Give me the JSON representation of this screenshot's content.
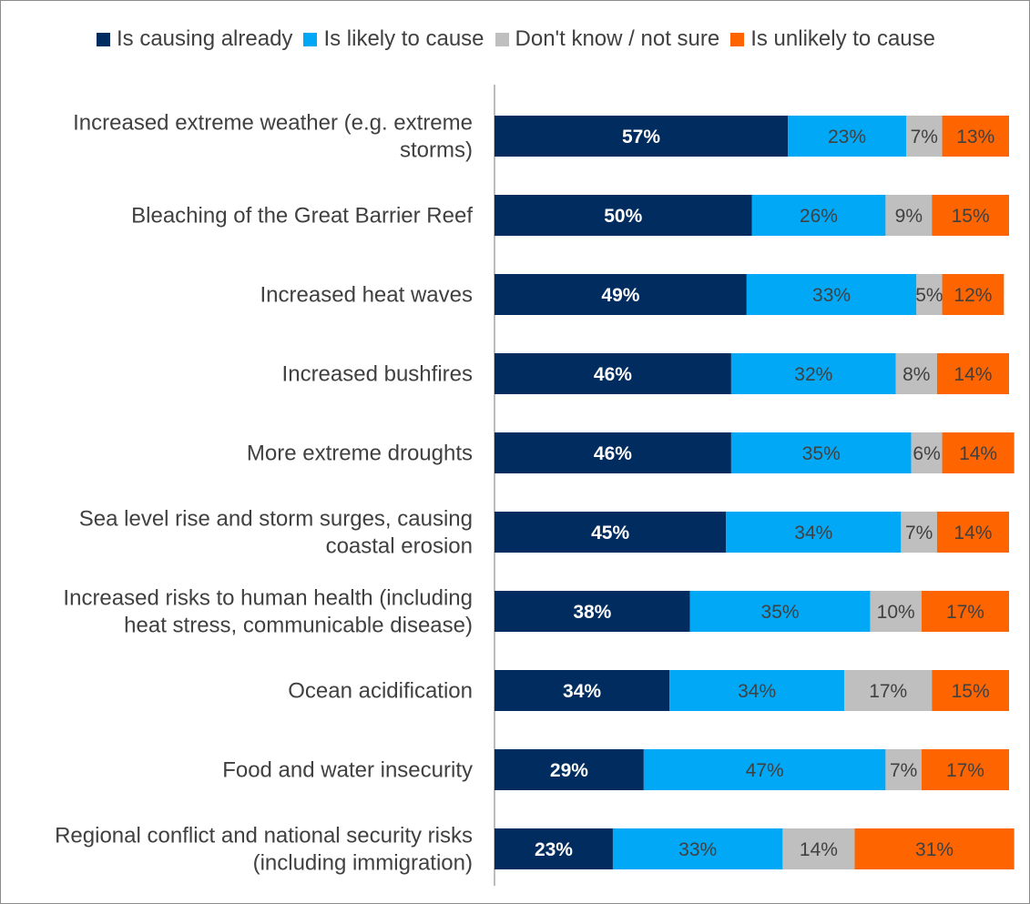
{
  "chart_data": {
    "type": "bar",
    "orientation": "horizontal",
    "stacked": true,
    "percent_stacked": true,
    "legend_position": "top",
    "grid": false,
    "title": "",
    "xlabel": "",
    "ylabel": "",
    "xlim": [
      0,
      100
    ],
    "categories": [
      [
        "Increased extreme weather (e.g. extreme",
        "storms)"
      ],
      [
        "Bleaching of the Great Barrier Reef"
      ],
      [
        "Increased heat waves"
      ],
      [
        "Increased bushfires"
      ],
      [
        "More extreme droughts"
      ],
      [
        "Sea level rise and storm surges, causing",
        "coastal erosion"
      ],
      [
        "Increased risks to human health (including",
        "heat stress, communicable disease)"
      ],
      [
        "Ocean acidification"
      ],
      [
        "Food and water insecurity"
      ],
      [
        "Regional conflict and national security risks",
        "(including immigration)"
      ]
    ],
    "series": [
      {
        "name": "Is causing already",
        "color": "#002c5f",
        "label_color": "#ffffff",
        "label_bold": true,
        "values": [
          57,
          50,
          49,
          46,
          46,
          45,
          38,
          34,
          29,
          23
        ]
      },
      {
        "name": "Is likely to cause",
        "color": "#00a8f5",
        "label_color": "#404040",
        "label_bold": false,
        "values": [
          23,
          26,
          33,
          32,
          35,
          34,
          35,
          34,
          47,
          33
        ]
      },
      {
        "name": "Don't know / not sure",
        "color": "#bfbfbf",
        "label_color": "#404040",
        "label_bold": false,
        "values": [
          7,
          9,
          5,
          8,
          6,
          7,
          10,
          17,
          7,
          14
        ]
      },
      {
        "name": "Is unlikely to cause",
        "color": "#fe6500",
        "label_color": "#404040",
        "label_bold": false,
        "values": [
          13,
          15,
          12,
          14,
          14,
          14,
          17,
          15,
          17,
          31
        ]
      }
    ],
    "value_suffix": "%"
  }
}
